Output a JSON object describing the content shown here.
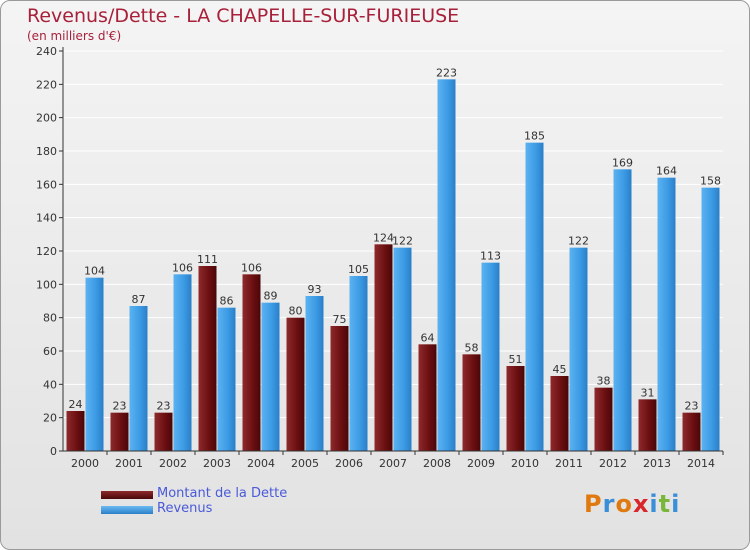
{
  "title": "Revenus/Dette - LA CHAPELLE-SUR-FURIEUSE",
  "subtitle": "(en milliers d'€)",
  "colors": {
    "dette": "#7a1416",
    "revenus": "#3d9ce6",
    "axis": "#333333",
    "grid": "#ffffff",
    "title": "#a8203a",
    "legend_text": "#4a5ad8"
  },
  "legend": [
    {
      "label": "Montant de la Dette",
      "color": "#6a0f10"
    },
    {
      "label": "Revenus",
      "color": "#3d9ce6"
    }
  ],
  "logo": {
    "text": "Proxiti",
    "letters": [
      "P",
      "r",
      "o",
      "x",
      "i",
      "t",
      "i"
    ],
    "colors": [
      "#e07a10",
      "#3a8fd8",
      "#e07a10",
      "#d8262b",
      "#3a8fd8",
      "#79b73a",
      "#3a8fd8"
    ]
  },
  "chart_data": {
    "type": "bar",
    "title": "Revenus/Dette - LA CHAPELLE-SUR-FURIEUSE",
    "subtitle": "(en milliers d'€)",
    "categories": [
      "2000",
      "2001",
      "2002",
      "2003",
      "2004",
      "2005",
      "2006",
      "2007",
      "2008",
      "2009",
      "2010",
      "2011",
      "2012",
      "2013",
      "2014"
    ],
    "series": [
      {
        "name": "Montant de la Dette",
        "values": [
          24,
          23,
          23,
          111,
          106,
          80,
          75,
          124,
          64,
          58,
          51,
          45,
          38,
          31,
          23
        ]
      },
      {
        "name": "Revenus",
        "values": [
          104,
          87,
          106,
          86,
          89,
          93,
          105,
          122,
          223,
          113,
          185,
          122,
          169,
          164,
          158
        ]
      }
    ],
    "ylim": [
      0,
      240
    ],
    "yticks": [
      0,
      20,
      40,
      60,
      80,
      100,
      120,
      140,
      160,
      180,
      200,
      220,
      240
    ],
    "grid": true,
    "legend_position": "bottom-left"
  }
}
